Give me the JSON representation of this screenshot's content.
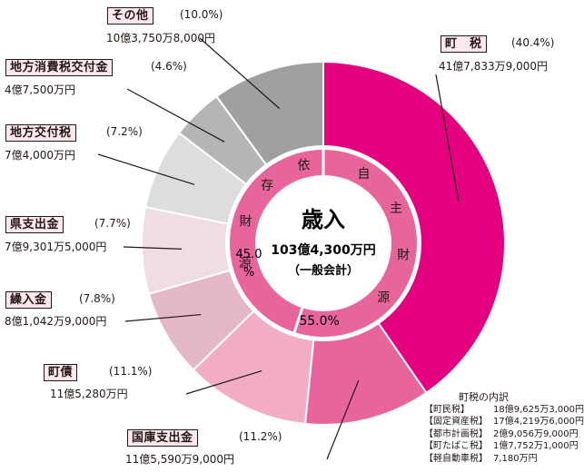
{
  "chart_data": {
    "type": "pie",
    "title": "歳入",
    "subtitle": "103億4,300万円",
    "subtitle_note": "（一般会計）",
    "slices": [
      {
        "label": "町　税",
        "percent_label": "(40.4%)",
        "value": 40.4,
        "amount": "41億7,833万9,000円",
        "color": "#e4007f"
      },
      {
        "label": "国庫支出金",
        "percent_label": "(11.2%)",
        "value": 11.2,
        "amount": "11億5,590万9,000円",
        "color": "#e8659c"
      },
      {
        "label": "町債",
        "percent_label": "(11.1%)",
        "value": 11.1,
        "amount": "11億5,280万円",
        "color": "#f2acc6"
      },
      {
        "label": "繰入金",
        "percent_label": "(7.8%)",
        "value": 7.8,
        "amount": "8億1,042万9,000円",
        "color": "#e5b8c8"
      },
      {
        "label": "県支出金",
        "percent_label": "(7.7%)",
        "value": 7.7,
        "amount": "7億9,301万5,000円",
        "color": "#f0dde3"
      },
      {
        "label": "地方交付税",
        "percent_label": "(7.2%)",
        "value": 7.2,
        "amount": "7億4,000万円",
        "color": "#dcdddd"
      },
      {
        "label": "地方消費税交付金",
        "percent_label": "(4.6%)",
        "value": 4.6,
        "amount": "4億7,500万円",
        "color": "#b5b5b6"
      },
      {
        "label": "その他",
        "percent_label": "(10.0%)",
        "value": 10.0,
        "amount": "10億3,750万8,000円",
        "color": "#9fa0a0"
      }
    ],
    "inner_ring": [
      {
        "label": "自主財源",
        "percent": "55.0%",
        "value": 55.0,
        "color": "#e8659c"
      },
      {
        "label": "依存財源",
        "percent": "45.0%",
        "value": 45.0,
        "color": "#e8659c"
      }
    ]
  },
  "breakdown": {
    "title": "町税の内訳",
    "items": [
      {
        "label": "【町民税】",
        "amount": "18億9,625万3,000円"
      },
      {
        "label": "【固定資産税】",
        "amount": "17億4,219万6,000円"
      },
      {
        "label": "【都市計画税】",
        "amount": "2億9,056万9,000円"
      },
      {
        "label": "【町たばこ税】",
        "amount": "1億7,752万1,000円"
      },
      {
        "label": "【軽自動車税】",
        "amount": "7,180万円"
      }
    ]
  }
}
